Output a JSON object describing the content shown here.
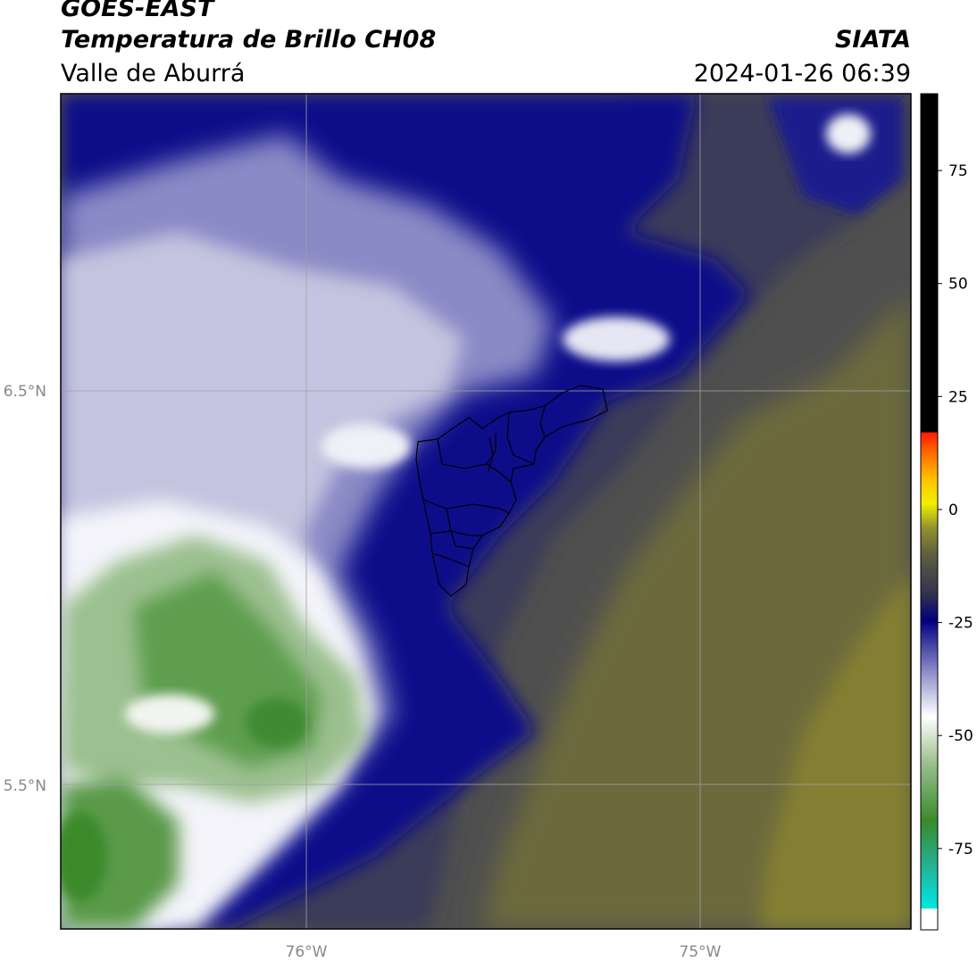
{
  "header": {
    "satellite": "GOES-EAST",
    "product": "Temperatura de Brillo CH08",
    "region": "Valle de Aburrá",
    "organization": "SIATA",
    "timestamp": "2024-01-26 06:39"
  },
  "map": {
    "lat_labels": [
      "6.5°N",
      "5.5°N"
    ],
    "lon_labels": [
      "76°W",
      "75°W"
    ],
    "grid": true
  },
  "colorbar": {
    "tick_labels": [
      "75",
      "50",
      "25",
      "0",
      "-25",
      "-50",
      "-75"
    ],
    "range": [
      -93,
      92
    ],
    "colors": {
      "black": "#000000",
      "red": "#ff2000",
      "orange": "#ff8000",
      "yellow": "#ffff00",
      "olive": "#808030",
      "gray": "#505050",
      "navy": "#000080",
      "white": "#ffffff",
      "green": "#3a8a2a",
      "cyan": "#00e5e0"
    }
  }
}
